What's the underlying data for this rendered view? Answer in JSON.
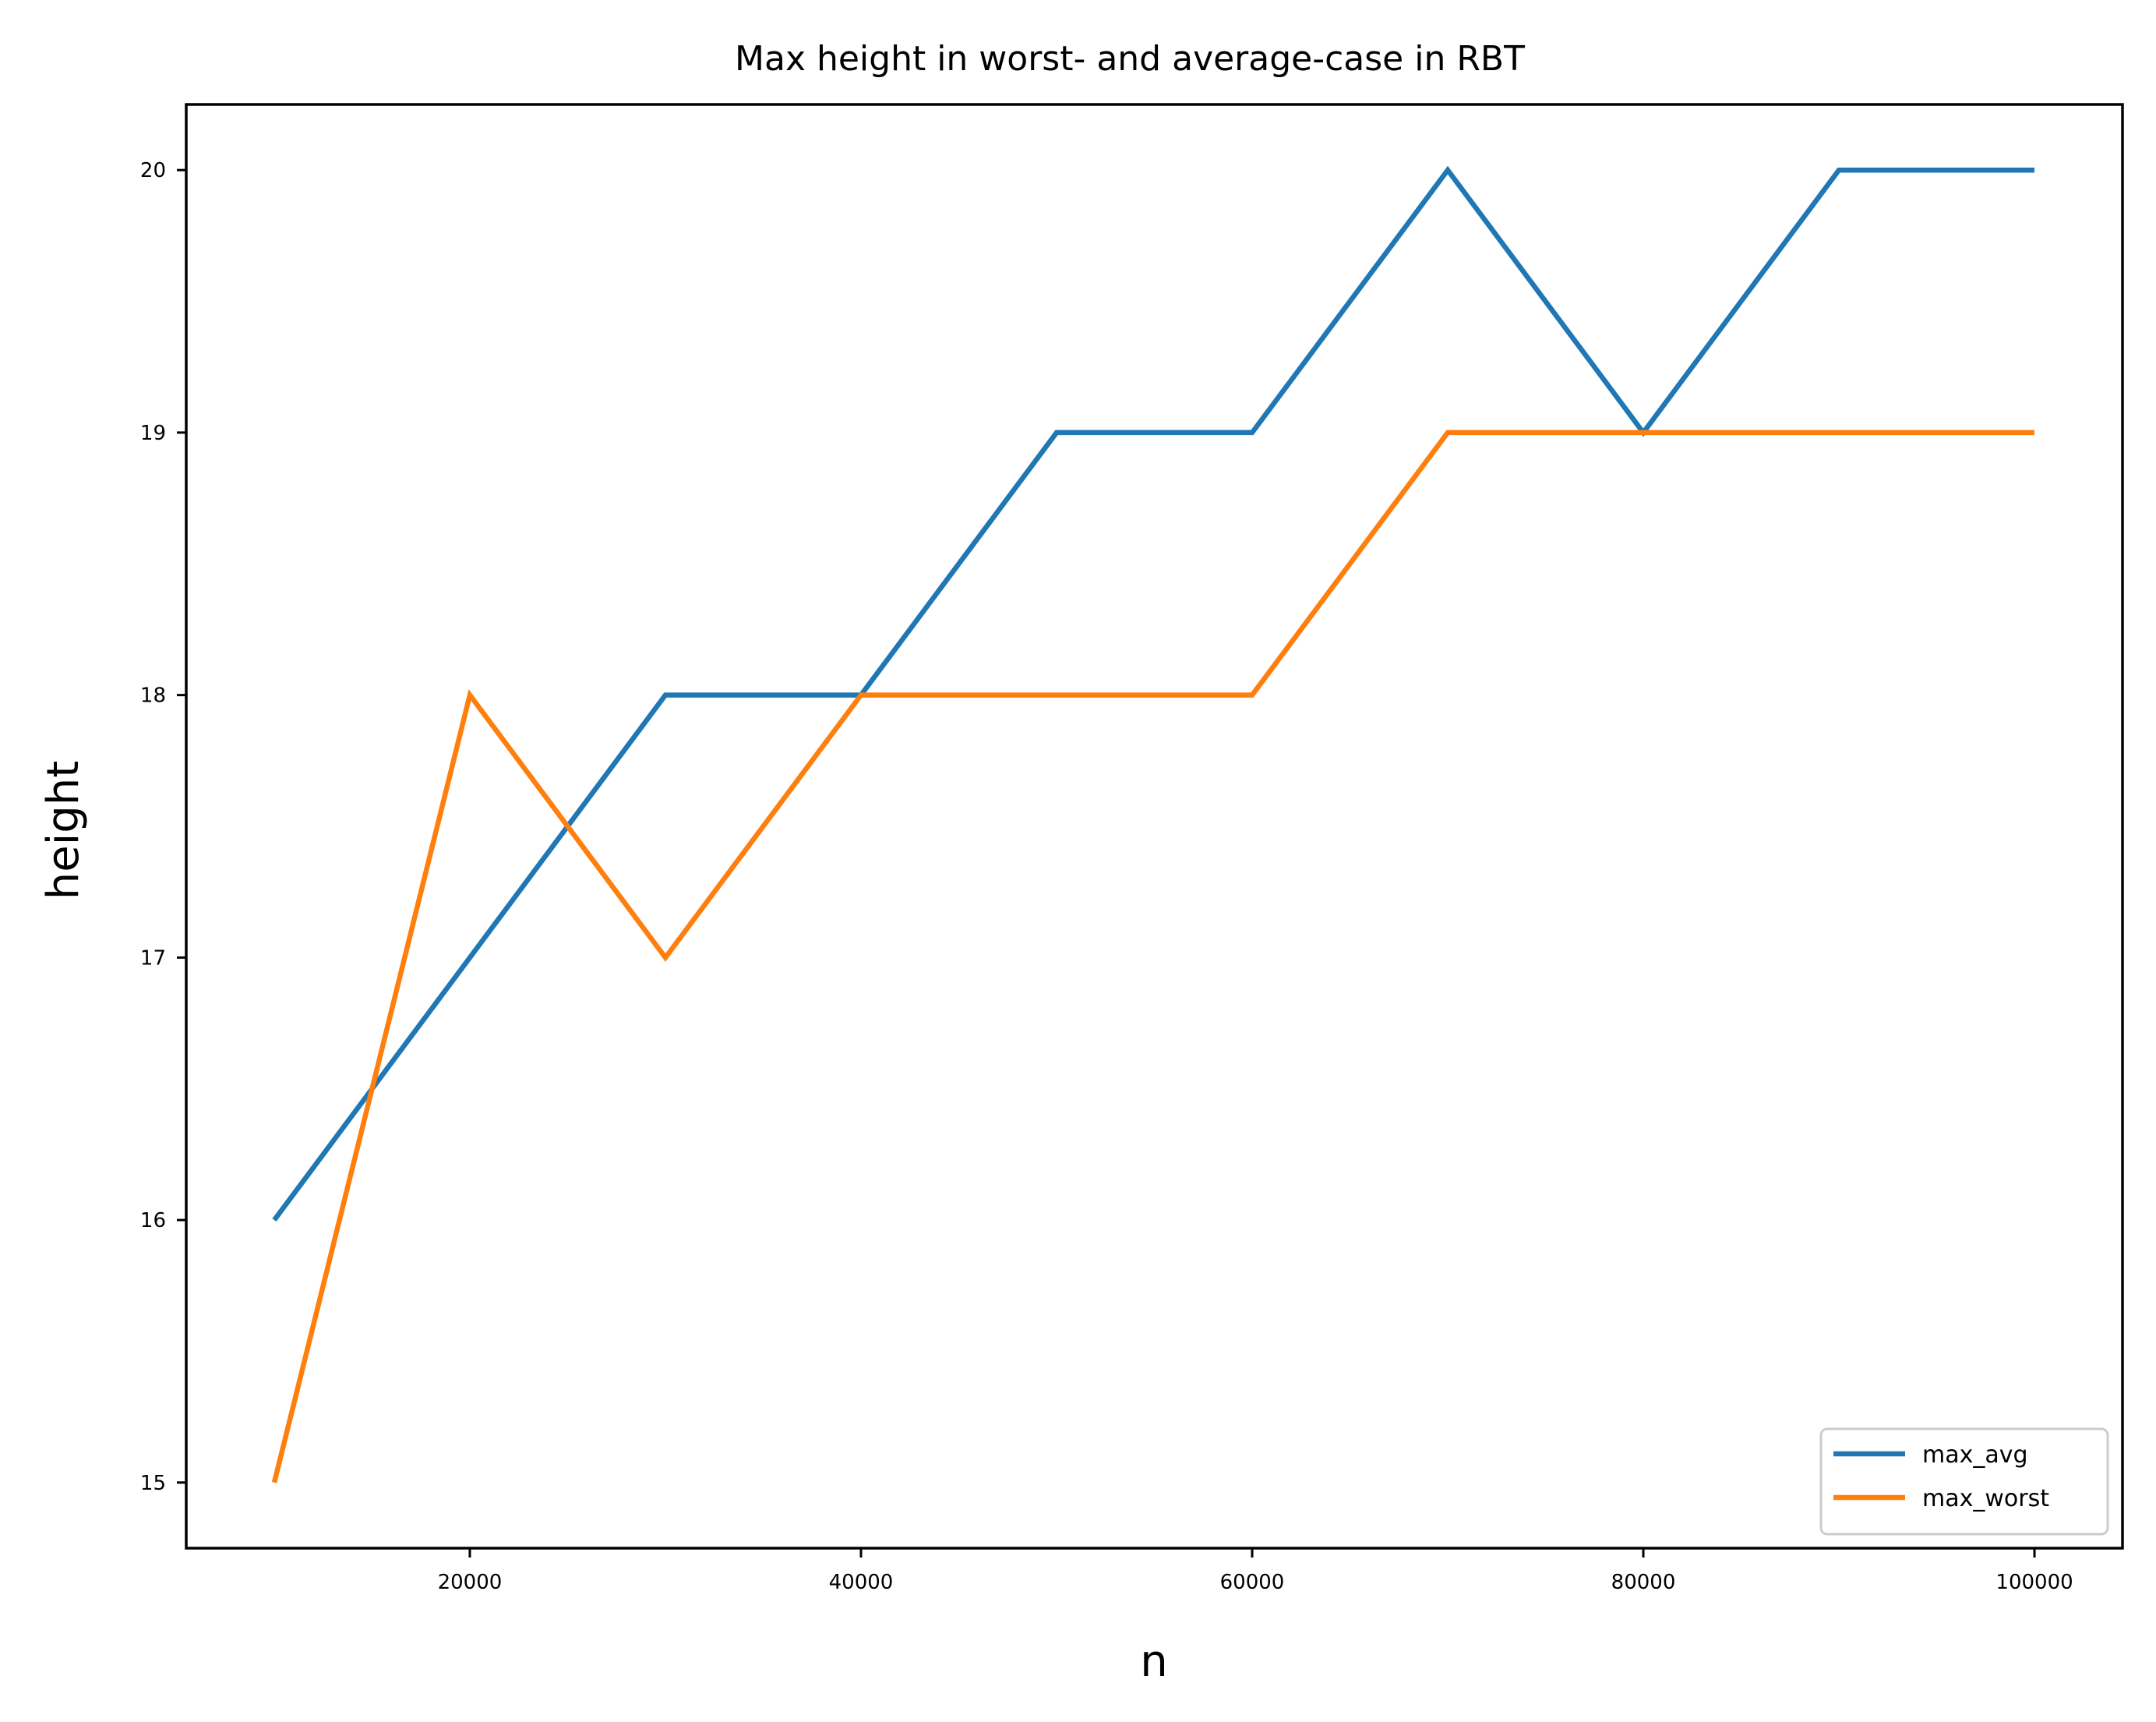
{
  "chart_data": {
    "type": "line",
    "title": "Max height in worst- and average-case in RBT",
    "xlabel": "n",
    "ylabel": "height",
    "x": [
      10000,
      20000,
      30000,
      40000,
      50000,
      60000,
      70000,
      80000,
      90000,
      100000
    ],
    "series": [
      {
        "name": "max_avg",
        "color": "#1f77b4",
        "values": [
          16,
          17,
          18,
          18,
          19,
          19,
          20,
          19,
          20,
          20
        ]
      },
      {
        "name": "max_worst",
        "color": "#ff7f0e",
        "values": [
          15,
          18,
          17,
          18,
          18,
          18,
          19,
          19,
          19,
          19
        ]
      }
    ],
    "xticks": [
      20000,
      40000,
      60000,
      80000,
      100000
    ],
    "yticks": [
      15,
      16,
      17,
      18,
      19,
      20
    ],
    "xlim": [
      5500,
      104500
    ],
    "ylim": [
      14.75,
      20.25
    ],
    "grid": false,
    "legend_position": "bottom-right"
  }
}
